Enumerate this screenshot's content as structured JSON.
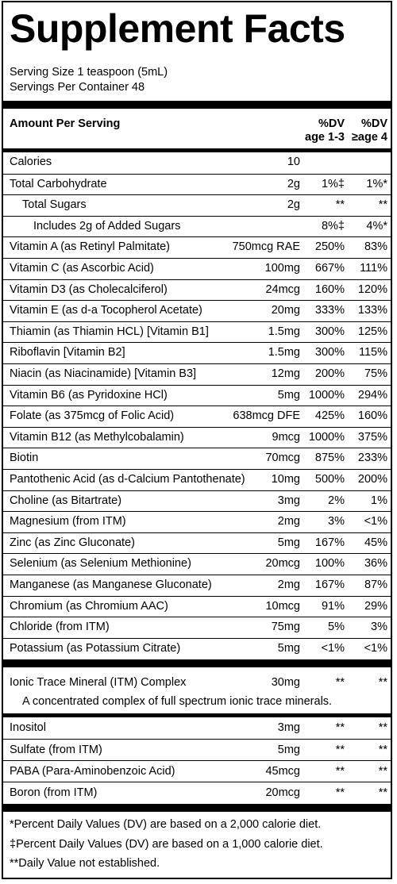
{
  "title": "Supplement Facts",
  "serving_size": "Serving Size 1 teaspoon (5mL)",
  "servings_per_container": "Servings Per Container 48",
  "header": {
    "amount_per_serving": "Amount Per Serving",
    "dv1_line1": "%DV",
    "dv1_line2": "age 1-3",
    "dv2_line1": "%DV",
    "dv2_line2": "≥age 4"
  },
  "rows": [
    {
      "name": "Calories",
      "amount": "10",
      "dv1": "",
      "dv2": ""
    },
    {
      "name": "Total Carbohydrate",
      "amount": "2g",
      "dv1": "1%‡",
      "dv2": "1%*"
    },
    {
      "name": "Total Sugars",
      "amount": "2g",
      "dv1": "**",
      "dv2": "**"
    },
    {
      "name": "Includes 2g of Added Sugars",
      "amount": "",
      "dv1": "8%‡",
      "dv2": "4%*"
    },
    {
      "name": "Vitamin A (as Retinyl Palmitate)",
      "amount": "750mcg RAE",
      "dv1": "250%",
      "dv2": "83%"
    },
    {
      "name": "Vitamin C (as Ascorbic Acid)",
      "amount": "100mg",
      "dv1": "667%",
      "dv2": "111%"
    },
    {
      "name": "Vitamin D3 (as Cholecalciferol)",
      "amount": "24mcg",
      "dv1": "160%",
      "dv2": "120%"
    },
    {
      "name": "Vitamin E (as d-a Tocopherol Acetate)",
      "amount": "20mg",
      "dv1": "333%",
      "dv2": "133%"
    },
    {
      "name": "Thiamin (as Thiamin HCL) [Vitamin B1]",
      "amount": "1.5mg",
      "dv1": "300%",
      "dv2": "125%"
    },
    {
      "name": "Riboflavin [Vitamin B2]",
      "amount": "1.5mg",
      "dv1": "300%",
      "dv2": "115%"
    },
    {
      "name": "Niacin (as Niacinamide) [Vitamin B3]",
      "amount": "12mg",
      "dv1": "200%",
      "dv2": "75%"
    },
    {
      "name": "Vitamin B6 (as Pyridoxine HCl)",
      "amount": "5mg",
      "dv1": "1000%",
      "dv2": "294%"
    },
    {
      "name": "Folate (as 375mcg of Folic Acid)",
      "amount": "638mcg DFE",
      "dv1": "425%",
      "dv2": "160%"
    },
    {
      "name": "Vitamin B12 (as Methylcobalamin)",
      "amount": "9mcg",
      "dv1": "1000%",
      "dv2": "375%"
    },
    {
      "name": "Biotin",
      "amount": "70mcg",
      "dv1": "875%",
      "dv2": "233%"
    },
    {
      "name": "Pantothenic Acid (as d-Calcium Pantothenate)",
      "amount": "10mg",
      "dv1": "500%",
      "dv2": "200%"
    },
    {
      "name": "Choline (as Bitartrate)",
      "amount": "3mg",
      "dv1": "2%",
      "dv2": "1%"
    },
    {
      "name": "Magnesium (from ITM)",
      "amount": "2mg",
      "dv1": "3%",
      "dv2": "<1%"
    },
    {
      "name": "Zinc (as Zinc Gluconate)",
      "amount": "5mg",
      "dv1": "167%",
      "dv2": "45%"
    },
    {
      "name": "Selenium (as Selenium Methionine)",
      "amount": "20mcg",
      "dv1": "100%",
      "dv2": "36%"
    },
    {
      "name": "Manganese (as Manganese Gluconate)",
      "amount": "2mg",
      "dv1": "167%",
      "dv2": "87%"
    },
    {
      "name": "Chromium (as Chromium AAC)",
      "amount": "10mcg",
      "dv1": "91%",
      "dv2": "29%"
    },
    {
      "name": "Chloride (from ITM)",
      "amount": "75mg",
      "dv1": "5%",
      "dv2": "3%"
    },
    {
      "name": "Potassium (as Potassium Citrate)",
      "amount": "5mg",
      "dv1": "<1%",
      "dv2": "<1%"
    }
  ],
  "itm": {
    "name": "Ionic Trace Mineral (ITM) Complex",
    "amount": "30mg",
    "dv1": "**",
    "dv2": "**",
    "description": "A concentrated complex of full spectrum ionic trace minerals."
  },
  "other_rows": [
    {
      "name": "Inositol",
      "amount": "3mg",
      "dv1": "**",
      "dv2": "**"
    },
    {
      "name": "Sulfate (from ITM)",
      "amount": "5mg",
      "dv1": "**",
      "dv2": "**"
    },
    {
      "name": "PABA (Para-Aminobenzoic Acid)",
      "amount": "45mcg",
      "dv1": "**",
      "dv2": "**"
    },
    {
      "name": "Boron (from ITM)",
      "amount": "20mcg",
      "dv1": "**",
      "dv2": "**"
    }
  ],
  "footnotes": [
    "*Percent Daily Values (DV) are based on a 2,000 calorie diet.",
    "‡Percent Daily Values (DV) are based on a 1,000 calorie diet.",
    "**Daily Value not established."
  ]
}
